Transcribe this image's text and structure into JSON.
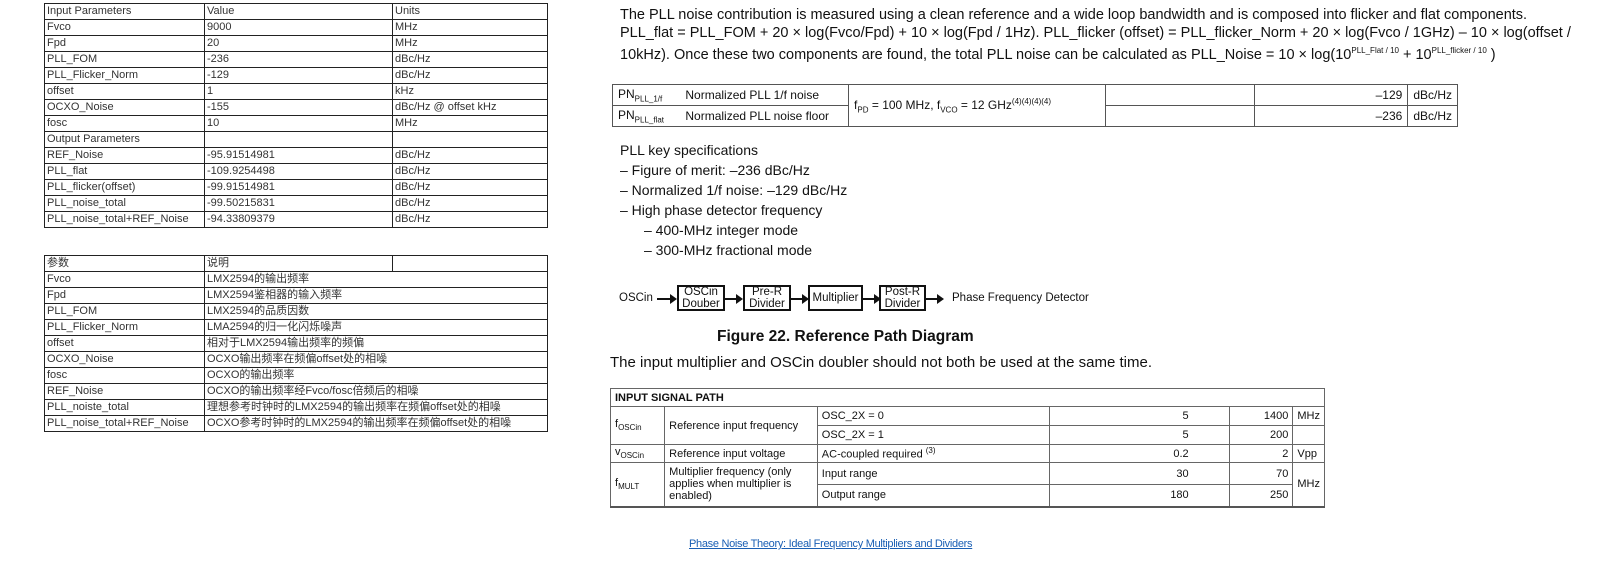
{
  "sheet1": {
    "rows": [
      [
        "Input Parameters",
        "Value",
        "Units"
      ],
      [
        "Fvco",
        "9000",
        "MHz"
      ],
      [
        "Fpd",
        "20",
        "MHz"
      ],
      [
        "PLL_FOM",
        "-236",
        "dBc/Hz"
      ],
      [
        "PLL_Flicker_Norm",
        "-129",
        "dBc/Hz"
      ],
      [
        "offset",
        "1",
        "kHz"
      ],
      [
        "OCXO_Noise",
        "-155",
        "dBc/Hz @ offset kHz"
      ],
      [
        "fosc",
        "10",
        "MHz"
      ],
      [
        "Output Parameters",
        "",
        ""
      ],
      [
        "REF_Noise",
        "-95.91514981",
        "dBc/Hz"
      ],
      [
        "PLL_flat",
        "-109.9254498",
        "dBc/Hz"
      ],
      [
        "PLL_flicker(offset)",
        "-99.91514981",
        "dBc/Hz"
      ],
      [
        "PLL_noise_total",
        "-99.50215831",
        "dBc/Hz"
      ],
      [
        "PLL_noise_total+REF_Noise",
        "-94.33809379",
        "dBc/Hz"
      ]
    ]
  },
  "sheet2": {
    "rows": [
      [
        "参数",
        "说明",
        ""
      ],
      [
        "Fvco",
        "LMX2594的输出频率",
        ""
      ],
      [
        "Fpd",
        "LMX2594鉴相器的输入频率",
        ""
      ],
      [
        "PLL_FOM",
        "LMX2594的品质因数",
        ""
      ],
      [
        "PLL_Flicker_Norm",
        "LMA2594的归一化闪烁噪声",
        ""
      ],
      [
        "offset",
        "相对于LMX2594输出频率的频偏",
        ""
      ],
      [
        "OCXO_Noise",
        "OCXO输出频率在频偏offset处的相噪",
        ""
      ],
      [
        "fosc",
        "OCXO的输出频率",
        ""
      ],
      [
        "REF_Noise",
        "OCXO的输出频率经Fvco/fosc倍频后的相噪",
        ""
      ],
      [
        "PLL_noiste_total",
        "理想参考时钟时的LMX2594的输出频率在频偏offset处的相噪",
        ""
      ],
      [
        "PLL_noise_total+REF_Noise",
        "OCXO参考时钟时的LMX2594的输出频率在频偏offset处的相噪",
        ""
      ]
    ]
  },
  "doc": {
    "para": "The PLL noise contribution is measured using a clean reference and a wide loop bandwidth and is composed into flicker and flat components. PLL_flat = PLL_FOM + 20 × log(Fvco/Fpd) + 10 × log(Fpd / 1Hz). PLL_flicker (offset) = PLL_flicker_Norm + 20 × log(Fvco / 1GHz) – 10 × log(offset / 10kHz). Once these two components are found, the total PLL noise can be calculated as PLL_Noise = 10 × log(10",
    "para_sup1": "PLL_Flat / 10",
    "para_mid": " + 10",
    "para_sup2": "PLL_flicker / 10",
    "para_end": " )",
    "pn": {
      "r1_sym": "PN",
      "r1_sub": "PLL_1/f",
      "r1_desc": "Normalized PLL 1/f noise",
      "r1_val": "–129",
      "r1_unit": "dBc/Hz",
      "r2_sym": "PN",
      "r2_sub": "PLL_flat",
      "r2_desc": "Normalized PLL noise floor",
      "r2_val": "–236",
      "r2_unit": "dBc/Hz",
      "cond_a": "f",
      "cond_a_sub": "PD",
      "cond_b": " = 100 MHz, f",
      "cond_b_sub": "VCO",
      "cond_c": " = 12 GHz",
      "cond_sup": "(4)(4)(4)(4)"
    },
    "specs_title": "PLL key specifications",
    "specs": [
      "–  Figure of merit: –236 dBc/Hz",
      "–  Normalized 1/f noise: –129 dBc/Hz",
      "–  High phase detector frequency"
    ],
    "subspecs": [
      "–  400-MHz integer mode",
      "–  300-MHz fractional mode"
    ],
    "diagram": {
      "input": "OSCin",
      "blocks": [
        "OSCin Douber",
        "Pre-R Divider",
        "Multiplier",
        "Post-R Divider"
      ],
      "output": "Phase Frequency Detector"
    },
    "figure_caption": "Figure 22.  Reference Path Diagram",
    "note": "The input multiplier and OSCin doubler should not both be used at the same time.",
    "isp": {
      "header": "INPUT SIGNAL PATH",
      "f_osc": "f",
      "f_osc_sub": "OSCin",
      "f_osc_desc": "Reference input frequency",
      "c1": "OSC_2X = 0",
      "c1_min": "5",
      "c1_max": "1400",
      "c1_unit": "MHz",
      "c2": "OSC_2X = 1",
      "c2_min": "5",
      "c2_max": "200",
      "v_osc": "v",
      "v_osc_sub": "OSCin",
      "v_osc_desc": "Reference input voltage",
      "c3": "AC-coupled required ",
      "c3_sup": "(3)",
      "c3_min": "0.2",
      "c3_max": "2",
      "c3_unit": "Vpp",
      "f_mult": "f",
      "f_mult_sub": "MULT",
      "f_mult_desc": "Multiplier frequency (only applies when multiplier is enabled)",
      "c4": "Input range",
      "c4_min": "30",
      "c4_max": "70",
      "c5": "Output range",
      "c5_min": "180",
      "c5_max": "250",
      "c45_unit": "MHz"
    },
    "link": "Phase Noise Theory: Ideal Frequency Multipliers and Dividers"
  }
}
